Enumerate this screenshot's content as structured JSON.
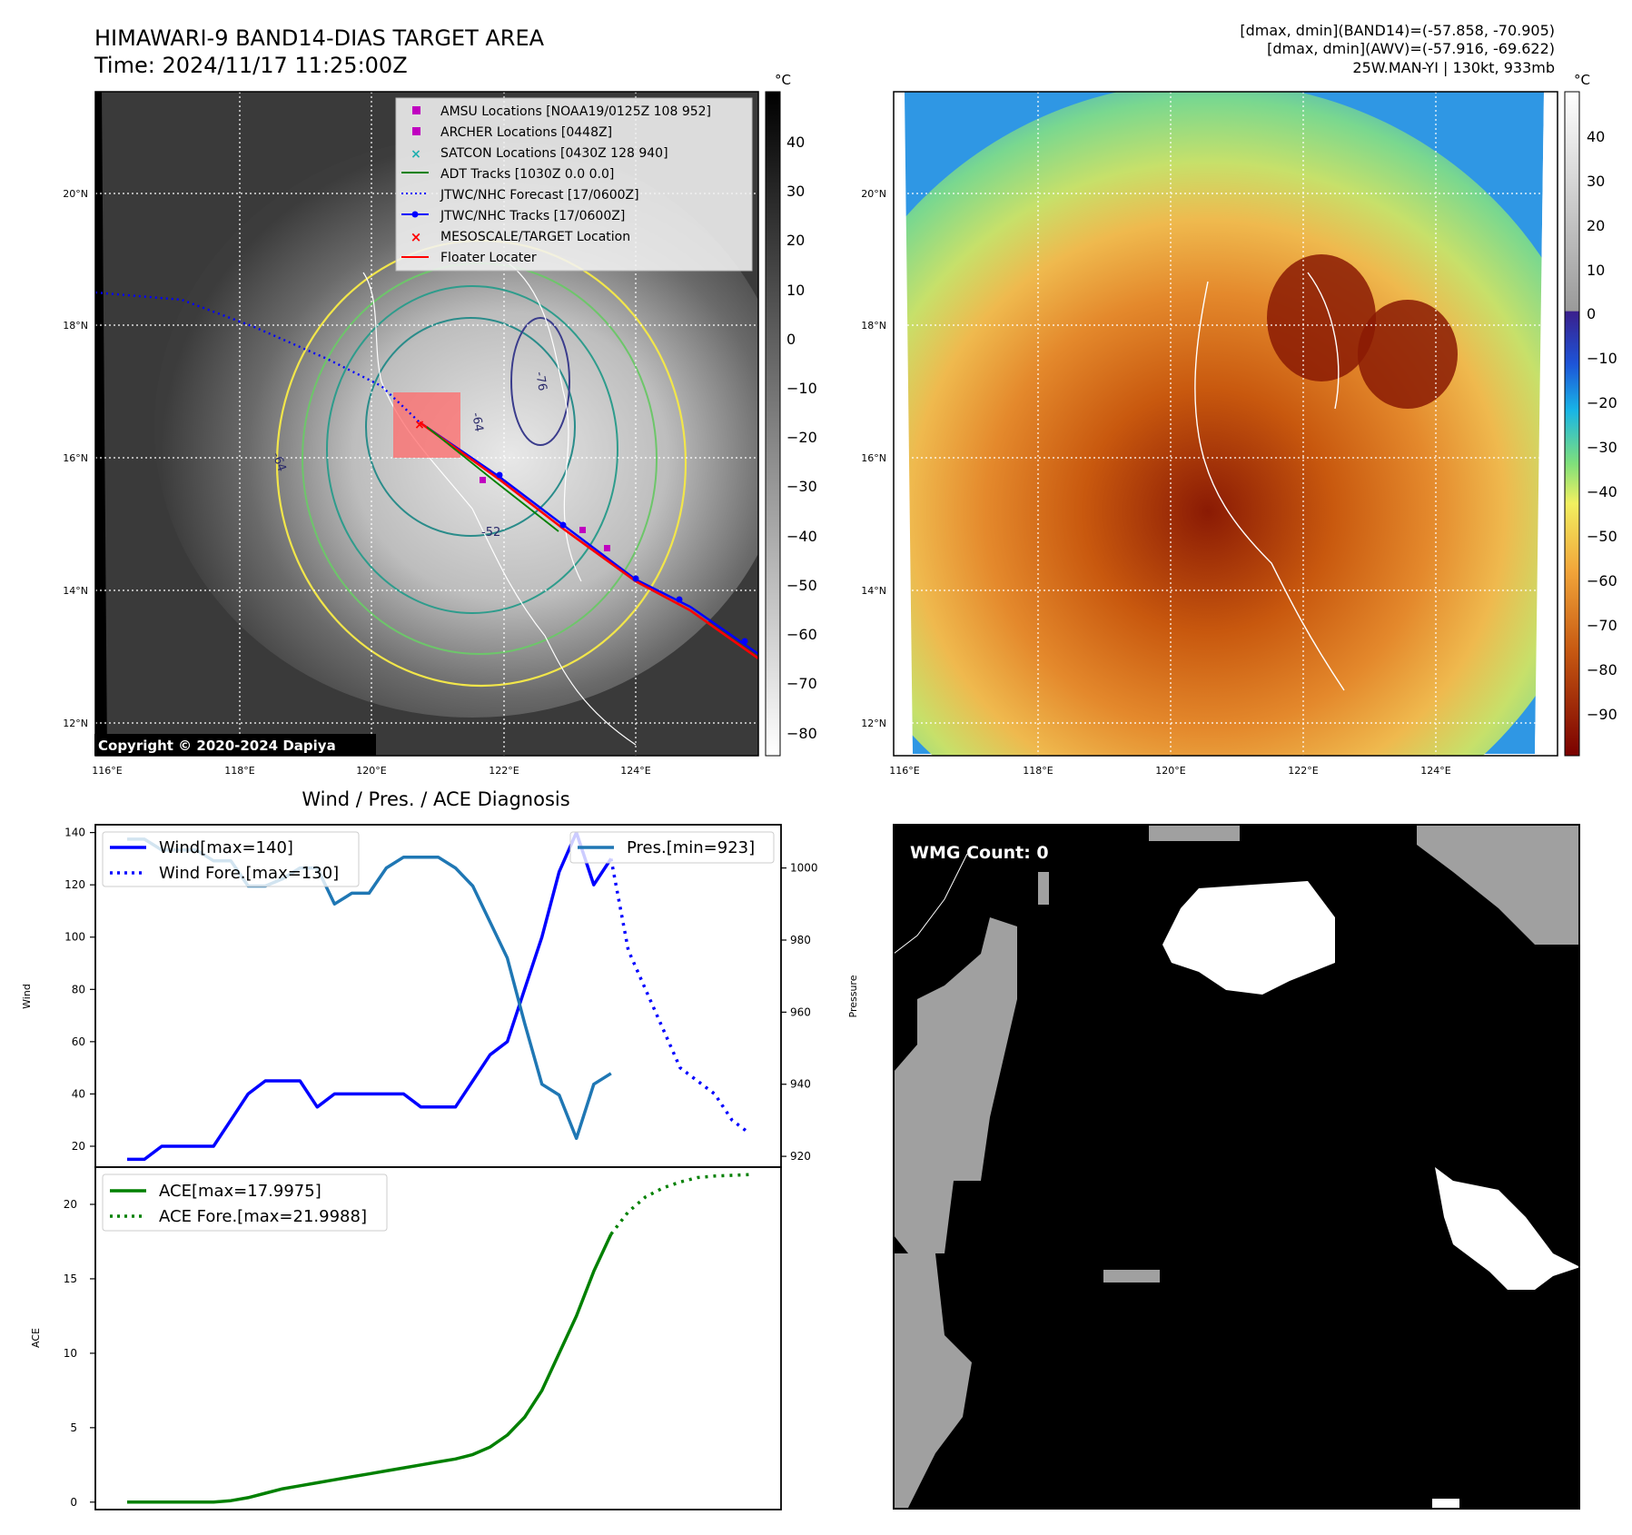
{
  "header": {
    "title_line1": "HIMAWARI-9 BAND14-DIAS TARGET AREA",
    "title_line2": "Time: 2024/11/17 11:25:00Z",
    "info_line1": "[dmax, dmin](BAND14)=(-57.858, -70.905)",
    "info_line2": "[dmax, dmin](AWV)=(-57.916, -69.622)",
    "info_line3": "25W.MAN-YI | 130kt, 933mb"
  },
  "map_left": {
    "copyright": "Copyright © 2020-2024 Dapiya",
    "lat_labels": [
      "20°N",
      "18°N",
      "16°N",
      "14°N",
      "12°N"
    ],
    "lon_labels": [
      "116°E",
      "118°E",
      "120°E",
      "122°E",
      "124°E"
    ],
    "colorbar": {
      "unit": "°C",
      "ticks": [
        "40",
        "30",
        "20",
        "10",
        "0",
        "−10",
        "−20",
        "−30",
        "−40",
        "−50",
        "−60",
        "−70",
        "−80"
      ]
    },
    "legend": [
      {
        "label": "AMSU Locations [NOAA19/0125Z 108 952]",
        "color": "#c000c0",
        "marker": "square"
      },
      {
        "label": "ARCHER Locations [0448Z]",
        "color": "#c000c0",
        "marker": "square"
      },
      {
        "label": "SATCON Locations [0430Z 128 940]",
        "color": "#20b0b0",
        "marker": "x"
      },
      {
        "label": "ADT Tracks [1030Z 0.0 0.0]",
        "color": "#008000",
        "marker": "line"
      },
      {
        "label": "JTWC/NHC Forecast [17/0600Z]",
        "color": "#0000ff",
        "marker": "dotted"
      },
      {
        "label": "JTWC/NHC Tracks [17/0600Z]",
        "color": "#0000ff",
        "marker": "line-dot"
      },
      {
        "label": "MESOSCALE/TARGET Location",
        "color": "#ff0000",
        "marker": "x"
      },
      {
        "label": "Floater Locater",
        "color": "#ff0000",
        "marker": "line"
      }
    ],
    "contour_labels": [
      "-76",
      "-64",
      "-52",
      "-64"
    ]
  },
  "map_right": {
    "lat_labels": [
      "20°N",
      "18°N",
      "16°N",
      "14°N",
      "12°N"
    ],
    "lon_labels": [
      "116°E",
      "118°E",
      "120°E",
      "122°E",
      "124°E"
    ],
    "colorbar": {
      "unit": "°C",
      "ticks": [
        "40",
        "30",
        "20",
        "10",
        "0",
        "−10",
        "−20",
        "−30",
        "−40",
        "−50",
        "−60",
        "−70",
        "−80",
        "−90"
      ]
    }
  },
  "wmg": {
    "label": "WMG Count: 0"
  },
  "chart_data": [
    {
      "type": "line",
      "title": "Wind / Pres. / ACE Diagnosis",
      "ylabel": "Wind",
      "ylabel_right": "Pressure",
      "ylim": [
        12,
        143
      ],
      "ylim_right": [
        917,
        1012
      ],
      "yticks": [
        20,
        40,
        60,
        80,
        100,
        120,
        140
      ],
      "yticks_right": [
        920,
        940,
        960,
        980,
        1000
      ],
      "xlim": [
        0,
        36
      ],
      "series": [
        {
          "name": "Wind",
          "legend": "Wind[max=140]",
          "color": "#0000ff",
          "style": "solid",
          "axis": "left",
          "x": [
            0,
            1,
            2,
            3,
            4,
            5,
            6,
            7,
            8,
            9,
            10,
            11,
            12,
            13,
            14,
            15,
            16,
            17,
            18,
            19,
            20,
            21,
            22,
            23,
            24,
            25,
            26
          ],
          "values": [
            15,
            15,
            20,
            20,
            20,
            20,
            30,
            40,
            45,
            45,
            45,
            35,
            40,
            40,
            40,
            40,
            40,
            35,
            35,
            35,
            45,
            55,
            60,
            80,
            100,
            125,
            140
          ]
        },
        {
          "name": "Wind (cont.)",
          "legend": "",
          "color": "#0000ff",
          "style": "solid",
          "axis": "left",
          "x": [
            26,
            27,
            28
          ],
          "values": [
            140,
            120,
            130
          ]
        },
        {
          "name": "Wind Fore.",
          "legend": "Wind Fore.[max=130]",
          "color": "#0000ff",
          "style": "dotted",
          "axis": "left",
          "x": [
            28,
            29,
            30,
            31,
            32,
            33,
            34,
            35,
            36
          ],
          "values": [
            130,
            95,
            80,
            65,
            50,
            45,
            40,
            30,
            25
          ]
        },
        {
          "name": "Pres.",
          "legend": "Pres.[min=923]",
          "color": "#1f77b4",
          "style": "solid",
          "axis": "right",
          "x": [
            0,
            1,
            2,
            3,
            4,
            5,
            6,
            7,
            8,
            9,
            10,
            11,
            12,
            13,
            14,
            15,
            16,
            17,
            18,
            19,
            20,
            21,
            22,
            23,
            24,
            25,
            26,
            27,
            28
          ],
          "values": [
            1008,
            1008,
            1005,
            1005,
            1005,
            1002,
            1002,
            995,
            995,
            997,
            1000,
            1000,
            990,
            993,
            993,
            1000,
            1003,
            1003,
            1003,
            1000,
            995,
            985,
            975,
            957,
            940,
            937,
            925,
            940,
            943
          ]
        }
      ]
    },
    {
      "type": "line",
      "ylabel": "ACE",
      "ylim": [
        -0.5,
        22.5
      ],
      "yticks": [
        0,
        5,
        10,
        15,
        20
      ],
      "xlim": [
        0,
        36
      ],
      "series": [
        {
          "name": "ACE",
          "legend": "ACE[max=17.9975]",
          "color": "#008000",
          "style": "solid",
          "x": [
            0,
            1,
            2,
            3,
            4,
            5,
            6,
            7,
            8,
            9,
            10,
            11,
            12,
            13,
            14,
            15,
            16,
            17,
            18,
            19,
            20,
            21,
            22,
            23,
            24,
            25,
            26,
            27,
            28
          ],
          "values": [
            0,
            0,
            0,
            0,
            0,
            0,
            0.1,
            0.3,
            0.6,
            0.9,
            1.1,
            1.3,
            1.5,
            1.7,
            1.9,
            2.1,
            2.3,
            2.5,
            2.7,
            2.9,
            3.2,
            3.7,
            4.5,
            5.7,
            7.5,
            10.0,
            12.5,
            15.5,
            18.0
          ]
        },
        {
          "name": "ACE Fore.",
          "legend": "ACE Fore.[max=21.9988]",
          "color": "#008000",
          "style": "dotted",
          "x": [
            28,
            29,
            30,
            31,
            32,
            33,
            34,
            35,
            36
          ],
          "values": [
            18.0,
            19.5,
            20.5,
            21.1,
            21.5,
            21.8,
            21.9,
            21.95,
            22.0
          ]
        }
      ]
    }
  ]
}
